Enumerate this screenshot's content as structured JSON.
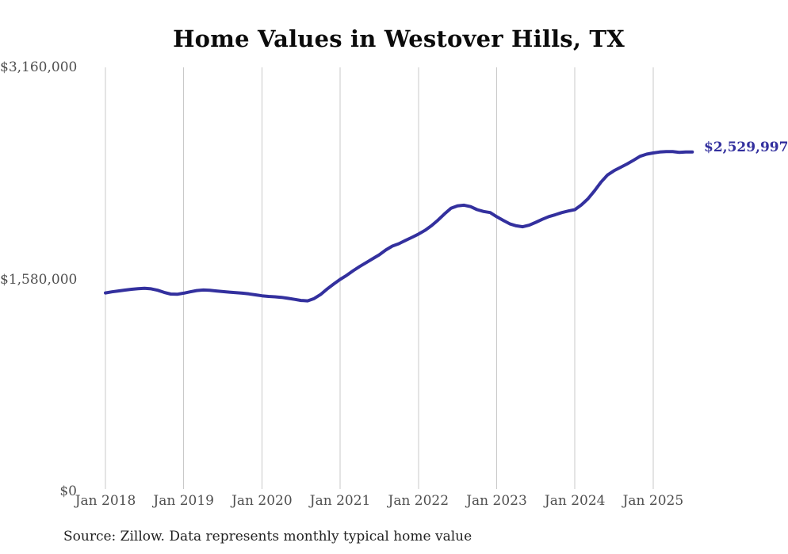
{
  "chart": {
    "title": "Home Values in Westover Hills, TX",
    "end_label": "$2,529,997",
    "source_note": "Source: Zillow. Data represents monthly typical home value"
  },
  "chart_data": {
    "type": "line",
    "title": "Home Values in Westover Hills, TX",
    "xlabel": "",
    "ylabel": "",
    "ylim": [
      0,
      3160000
    ],
    "grid": "vertical-only",
    "legend_position": "none",
    "y_ticks": [
      {
        "value": 0,
        "label": "$0"
      },
      {
        "value": 1580000,
        "label": "$1,580,000"
      },
      {
        "value": 3160000,
        "label": "$3,160,000"
      }
    ],
    "x_tick_labels": [
      "Jan 2018",
      "Jan 2019",
      "Jan 2020",
      "Jan 2021",
      "Jan 2022",
      "Jan 2023",
      "Jan 2024",
      "Jan 2025"
    ],
    "start_month": "2018-01",
    "end_month": "2025-07",
    "months_per_tick": 12,
    "series": [
      {
        "name": "Monthly typical home value",
        "values": [
          1479000,
          1487000,
          1494000,
          1500000,
          1506000,
          1511000,
          1514000,
          1510000,
          1499000,
          1483000,
          1471000,
          1469000,
          1477000,
          1487000,
          1497000,
          1501000,
          1499000,
          1494000,
          1489000,
          1485000,
          1481000,
          1477000,
          1472000,
          1465000,
          1458000,
          1453000,
          1450000,
          1446000,
          1439000,
          1431000,
          1423000,
          1420000,
          1437000,
          1467000,
          1508000,
          1545000,
          1580000,
          1610000,
          1645000,
          1676000,
          1705000,
          1734000,
          1763000,
          1799000,
          1828000,
          1846000,
          1870000,
          1893000,
          1917000,
          1945000,
          1980000,
          2022000,
          2068000,
          2110000,
          2128000,
          2133000,
          2122000,
          2100000,
          2086000,
          2078000,
          2047000,
          2020000,
          1994000,
          1979000,
          1972000,
          1984000,
          2005000,
          2028000,
          2048000,
          2062000,
          2078000,
          2090000,
          2100000,
          2135000,
          2180000,
          2240000,
          2305000,
          2358000,
          2390000,
          2415000,
          2440000,
          2468000,
          2497000,
          2513000,
          2522000,
          2529000,
          2533000,
          2532000,
          2527000,
          2530000,
          2529997
        ],
        "latest_value": 2529997,
        "latest_value_label": "$2,529,997"
      }
    ],
    "colors": {
      "line": "#33309e",
      "grid": "#c9c9c9",
      "tick_label": "#4f4f4f",
      "title": "#0b0b0b",
      "source": "#222222",
      "background": "#ffffff"
    }
  }
}
